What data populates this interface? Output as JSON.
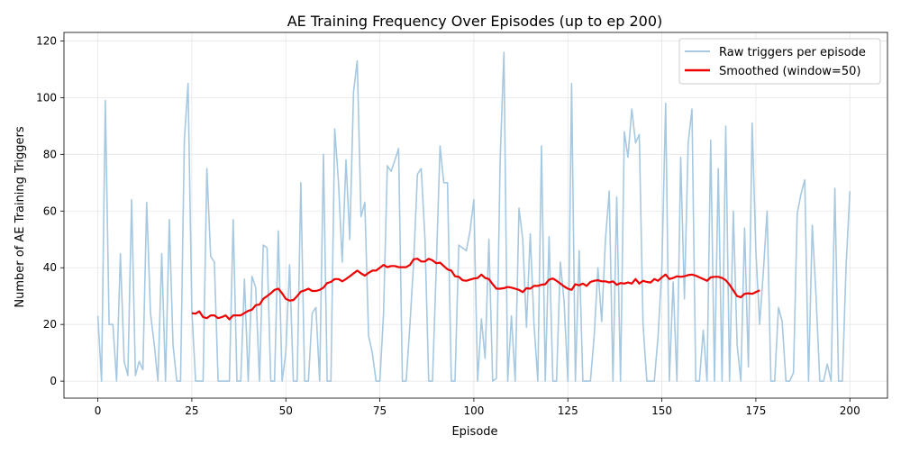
{
  "chart_data": {
    "type": "line",
    "title": "AE Training Frequency Over Episodes (up to ep 200)",
    "xlabel": "Episode",
    "ylabel": "Number of AE Training Triggers",
    "xlim": [
      -9,
      210
    ],
    "ylim": [
      -6,
      123
    ],
    "xticks": [
      0,
      25,
      50,
      75,
      100,
      125,
      150,
      175,
      200
    ],
    "yticks": [
      0,
      20,
      40,
      60,
      80,
      100,
      120
    ],
    "grid": true,
    "legend_position": "top-right",
    "series": [
      {
        "name": "Raw triggers per episode",
        "color": "#a6c8e0",
        "x": [
          0,
          1,
          2,
          3,
          4,
          5,
          6,
          7,
          8,
          9,
          10,
          11,
          12,
          13,
          14,
          15,
          16,
          17,
          18,
          19,
          20,
          21,
          22,
          23,
          24,
          25,
          26,
          27,
          28,
          29,
          30,
          31,
          32,
          33,
          34,
          35,
          36,
          37,
          38,
          39,
          40,
          41,
          42,
          43,
          44,
          45,
          46,
          47,
          48,
          49,
          50,
          51,
          52,
          53,
          54,
          55,
          56,
          57,
          58,
          59,
          60,
          61,
          62,
          63,
          64,
          65,
          66,
          67,
          68,
          69,
          70,
          71,
          72,
          73,
          74,
          75,
          76,
          77,
          78,
          79,
          80,
          81,
          82,
          83,
          84,
          85,
          86,
          87,
          88,
          89,
          90,
          91,
          92,
          93,
          94,
          95,
          96,
          97,
          98,
          99,
          100,
          101,
          102,
          103,
          104,
          105,
          106,
          107,
          108,
          109,
          110,
          111,
          112,
          113,
          114,
          115,
          116,
          117,
          118,
          119,
          120,
          121,
          122,
          123,
          124,
          125,
          126,
          127,
          128,
          129,
          130,
          131,
          132,
          133,
          134,
          135,
          136,
          137,
          138,
          139,
          140,
          141,
          142,
          143,
          144,
          145,
          146,
          147,
          148,
          149,
          150,
          151,
          152,
          153,
          154,
          155,
          156,
          157,
          158,
          159,
          160,
          161,
          162,
          163,
          164,
          165,
          166,
          167,
          168,
          169,
          170,
          171,
          172,
          173,
          174,
          175,
          176,
          177,
          178,
          179,
          180,
          181,
          182,
          183,
          184,
          185,
          186,
          187,
          188,
          189,
          190,
          191,
          192,
          193,
          194,
          195,
          196,
          197,
          198,
          199,
          200
        ],
        "values": [
          23,
          0,
          99,
          20,
          20,
          0,
          45,
          7,
          2,
          64,
          2,
          7,
          4,
          63,
          24,
          13,
          0,
          45,
          0,
          57,
          13,
          0,
          0,
          85,
          105,
          25,
          0,
          0,
          0,
          75,
          44,
          42,
          0,
          0,
          0,
          0,
          57,
          0,
          0,
          36,
          0,
          37,
          33,
          0,
          48,
          47,
          0,
          0,
          53,
          0,
          10,
          41,
          0,
          0,
          70,
          0,
          0,
          24,
          26,
          0,
          80,
          0,
          0,
          89,
          70,
          42,
          78,
          50,
          102,
          113,
          58,
          63,
          16,
          10,
          0,
          0,
          24,
          76,
          74,
          78,
          82,
          0,
          0,
          20,
          42,
          73,
          75,
          50,
          0,
          0,
          40,
          83,
          70,
          70,
          0,
          0,
          48,
          47,
          46,
          53,
          64,
          0,
          22,
          8,
          50,
          0,
          1,
          78,
          116,
          0,
          23,
          0,
          61,
          50,
          19,
          52,
          20,
          0,
          83,
          0,
          51,
          0,
          0,
          42,
          28,
          0,
          105,
          0,
          46,
          0,
          0,
          0,
          16,
          40,
          21,
          50,
          67,
          0,
          65,
          0,
          88,
          79,
          96,
          84,
          87,
          20,
          0,
          0,
          0,
          16,
          40,
          98,
          0,
          35,
          0,
          79,
          29,
          84,
          96,
          0,
          0,
          18,
          0,
          85,
          0,
          75,
          0,
          90,
          0,
          60,
          13,
          0,
          54,
          5,
          91,
          46,
          20,
          39,
          60,
          0,
          0,
          26,
          21,
          0,
          0,
          3,
          59,
          66,
          71,
          0,
          55,
          30,
          0,
          0,
          6,
          0,
          68,
          0,
          0,
          41,
          67
        ]
      },
      {
        "name": "Smoothed (window=50)",
        "color": "#ee0000",
        "x": [
          25,
          26,
          27,
          28,
          29,
          30,
          31,
          32,
          33,
          34,
          35,
          36,
          37,
          38,
          39,
          40,
          41,
          42,
          43,
          44,
          45,
          46,
          47,
          48,
          49,
          50,
          51,
          52,
          53,
          54,
          55,
          56,
          57,
          58,
          59,
          60,
          61,
          62,
          63,
          64,
          65,
          66,
          67,
          68,
          69,
          70,
          71,
          72,
          73,
          74,
          75,
          76,
          77,
          78,
          79,
          80,
          81,
          82,
          83,
          84,
          85,
          86,
          87,
          88,
          89,
          90,
          91,
          92,
          93,
          94,
          95,
          96,
          97,
          98,
          99,
          100,
          101,
          102,
          103,
          104,
          105,
          106,
          107,
          108,
          109,
          110,
          111,
          112,
          113,
          114,
          115,
          116,
          117,
          118,
          119,
          120,
          121,
          122,
          123,
          124,
          125,
          126,
          127,
          128,
          129,
          130,
          131,
          132,
          133,
          134,
          135,
          136,
          137,
          138,
          139,
          140,
          141,
          142,
          143,
          144,
          145,
          146,
          147,
          148,
          149,
          150,
          151,
          152,
          153,
          154,
          155,
          156,
          157,
          158,
          159,
          160,
          161,
          162,
          163,
          164,
          165,
          166,
          167,
          168,
          169,
          170,
          171,
          172,
          173,
          174,
          175,
          176
        ],
        "values": [
          24,
          23.8,
          24.6,
          22.6,
          22.2,
          23.2,
          23.2,
          22.2,
          22.6,
          23.2,
          21.8,
          23.2,
          23.2,
          23.2,
          24,
          24.8,
          25.2,
          26.8,
          27,
          29,
          30,
          31,
          32.2,
          32.6,
          31,
          29,
          28.4,
          28.6,
          30,
          31.6,
          32,
          32.6,
          31.8,
          31.8,
          32.2,
          33,
          34.6,
          35,
          36,
          36,
          35.2,
          36,
          37,
          38,
          39,
          38,
          37.2,
          38.2,
          39,
          39,
          40,
          41,
          40.2,
          40.6,
          40.6,
          40.2,
          40.2,
          40.2,
          41,
          43,
          43.2,
          42.2,
          42.2,
          43.2,
          42.6,
          41.6,
          41.8,
          40.6,
          39.4,
          39,
          37,
          36.8,
          35.6,
          35.4,
          35.8,
          36.2,
          36.4,
          37.6,
          36.4,
          36,
          34.2,
          32.6,
          32.6,
          32.8,
          33.2,
          33,
          32.6,
          32.2,
          31.4,
          32.8,
          32.6,
          33.6,
          33.6,
          34,
          34.2,
          35.8,
          36.2,
          35.4,
          34.4,
          33.4,
          32.6,
          32.2,
          34.2,
          33.8,
          34.4,
          33.6,
          35,
          35.4,
          35.6,
          35.2,
          35.2,
          34.8,
          35.2,
          34,
          34.6,
          34.4,
          34.8,
          34.4,
          36,
          34.4,
          35.4,
          35,
          34.8,
          36,
          35.4,
          36.6,
          37.6,
          36,
          36.4,
          37,
          36.8,
          37,
          37.4,
          37.6,
          37.2,
          36.6,
          36,
          35.4,
          36.6,
          36.8,
          36.8,
          36.4,
          35.6,
          34,
          32,
          30,
          29.6,
          30.8,
          31,
          30.8,
          31.4,
          32
        ]
      }
    ]
  }
}
